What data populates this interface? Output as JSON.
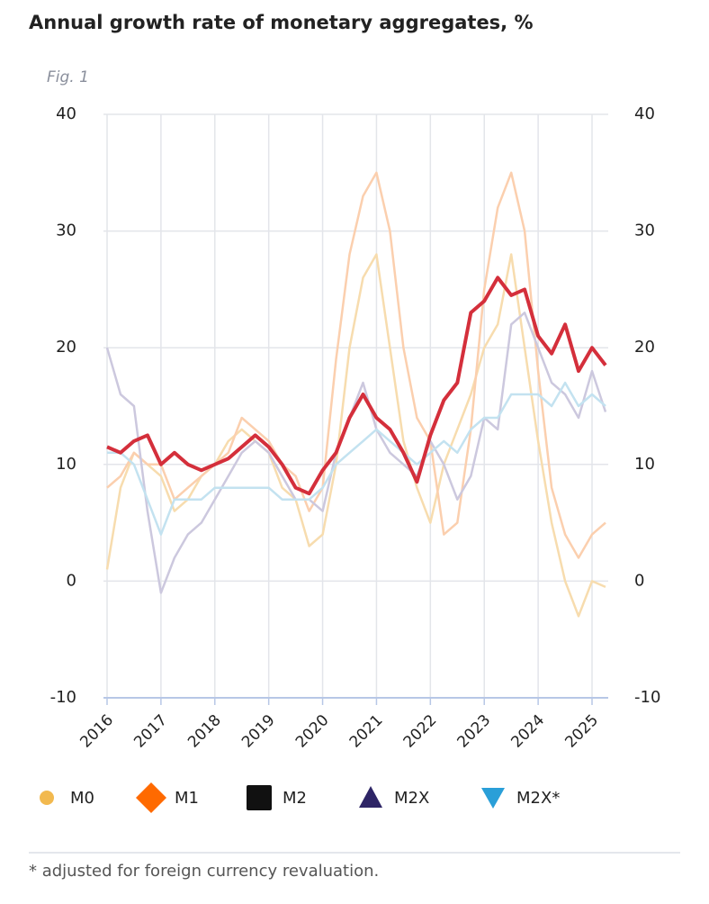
{
  "chart_data": {
    "type": "line",
    "title": "Annual growth rate of monetary aggregates, %",
    "figure_label": "Fig. 1",
    "footnote": "* adjusted for foreign currency revaluation.",
    "x": [
      2016,
      2016.25,
      2016.5,
      2016.75,
      2017,
      2017.25,
      2017.5,
      2017.75,
      2018,
      2018.25,
      2018.5,
      2018.75,
      2019,
      2019.25,
      2019.5,
      2019.75,
      2020,
      2020.25,
      2020.5,
      2020.75,
      2021,
      2021.25,
      2021.5,
      2021.75,
      2022,
      2022.25,
      2022.5,
      2022.75,
      2023,
      2023.25,
      2023.5,
      2023.75,
      2024,
      2024.25,
      2024.5,
      2024.75,
      2025,
      2025.25
    ],
    "xlim": [
      2016,
      2025.25
    ],
    "xticks": [
      2016,
      2017,
      2018,
      2019,
      2020,
      2021,
      2022,
      2023,
      2024,
      2025
    ],
    "ylim": [
      -10,
      40
    ],
    "yticks": [
      -10,
      0,
      10,
      20,
      30,
      40
    ],
    "grid": true,
    "second_axis_mirrors_ticks": true,
    "series": [
      {
        "name": "M0",
        "marker": "circle",
        "color": "#f2b94f",
        "line_color": "#f7dcae",
        "values": [
          1,
          8,
          11,
          10,
          9,
          6,
          7,
          9,
          10,
          12,
          13,
          12,
          11,
          8,
          7,
          3,
          4,
          10,
          20,
          26,
          28,
          20,
          12,
          8,
          5,
          10,
          13,
          16,
          20,
          22,
          28,
          20,
          12,
          5,
          0,
          -3,
          0,
          -0.5
        ]
      },
      {
        "name": "M1",
        "marker": "diamond",
        "color": "#ff6a00",
        "line_color": "#fbcfae",
        "values": [
          8,
          9,
          11,
          10,
          10,
          7,
          8,
          9,
          10,
          11,
          14,
          13,
          12,
          10,
          9,
          6,
          8,
          19,
          28,
          33,
          35,
          30,
          20,
          14,
          12,
          4,
          5,
          13,
          25,
          32,
          35,
          30,
          18,
          8,
          4,
          2,
          4,
          5
        ]
      },
      {
        "name": "M2",
        "marker": "square",
        "color": "#111111",
        "line_color": "#d42f3b",
        "line_width": 4,
        "values": [
          11.5,
          11,
          12,
          12.5,
          10,
          11,
          10,
          9.5,
          10,
          10.5,
          11.5,
          12.5,
          11.5,
          10,
          8,
          7.5,
          9.5,
          11,
          14,
          16,
          14,
          13,
          11,
          8.5,
          12.5,
          15.5,
          17,
          23,
          24,
          26,
          24.5,
          25,
          21,
          19.5,
          22,
          18,
          20,
          18.5
        ]
      },
      {
        "name": "M2X",
        "marker": "triangle-up",
        "color": "#2e2566",
        "line_color": "#ccc8de",
        "values": [
          20,
          16,
          15,
          6,
          -1,
          2,
          4,
          5,
          7,
          9,
          11,
          12,
          11,
          9,
          7,
          7,
          6,
          11,
          14,
          17,
          13,
          11,
          10,
          9,
          12,
          10,
          7,
          9,
          14,
          13,
          22,
          23,
          20,
          17,
          16,
          14,
          18,
          14.5
        ]
      },
      {
        "name": "M2X*",
        "marker": "triangle-down",
        "color": "#2a9fd8",
        "line_color": "#c3e2f0",
        "values": [
          11,
          11,
          10,
          7,
          4,
          7,
          7,
          7,
          8,
          8,
          8,
          8,
          8,
          7,
          7,
          7,
          8,
          10,
          11,
          12,
          13,
          12,
          11,
          10,
          11,
          12,
          11,
          13,
          14,
          14,
          16,
          16,
          16,
          15,
          17,
          15,
          16,
          15
        ]
      }
    ]
  }
}
